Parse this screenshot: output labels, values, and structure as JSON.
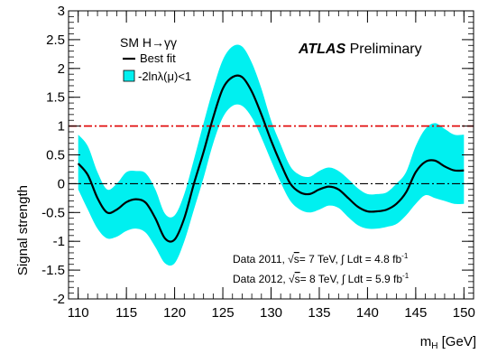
{
  "chart_data": {
    "type": "line",
    "xlabel": "m",
    "xlabel_sub": "H",
    "xlabel_unit": " [GeV]",
    "ylabel": "Signal strength",
    "xlim": [
      109,
      151
    ],
    "ylim": [
      -2,
      3
    ],
    "x_ticks": [
      110,
      115,
      120,
      125,
      130,
      135,
      140,
      145,
      150
    ],
    "y_ticks": [
      -2,
      -1.5,
      -1,
      -0.5,
      0,
      0.5,
      1,
      1.5,
      2,
      2.5,
      3
    ],
    "y_tick_labels": [
      "-2",
      "-1.5",
      "-1",
      "-0.5",
      "0",
      "0.5",
      "1",
      "1.5",
      "2",
      "2.5",
      "3"
    ],
    "experiment": "ATLAS",
    "experiment_suffix": " Preliminary",
    "legend": {
      "title": "SM H→γγ",
      "line_label": "Best fit",
      "band_label": "-2lnλ(μ)<1",
      "position": "top-left"
    },
    "data_notes": {
      "line1_prefix": "Data 2011, ",
      "line1_sqrt": "√",
      "line1_s": "s",
      "line1_mid": "= 7 TeV, ",
      "line1_int": "∫",
      "line1_ldt": " Ldt = 4.8 fb",
      "line2_prefix": "Data 2012, ",
      "line2_sqrt": "√",
      "line2_s": "s",
      "line2_mid": "= 8 TeV, ",
      "line2_int": "∫",
      "line2_ldt": " Ldt = 5.9 fb",
      "sup": "-1"
    },
    "reference_lines": [
      {
        "y": 1,
        "color": "#e00000",
        "style": "dash-dot"
      },
      {
        "y": 0,
        "color": "#000000",
        "style": "dash-dot"
      }
    ],
    "colors": {
      "band": "#00f0f0",
      "line": "#000000"
    },
    "series": [
      {
        "x": [
          110,
          111,
          112,
          113,
          114,
          115,
          116,
          117,
          118,
          119,
          120,
          121,
          122,
          123,
          124,
          125,
          126,
          127,
          128,
          129,
          130,
          131,
          132,
          133,
          134,
          135,
          136,
          137,
          138,
          139,
          140,
          141,
          142,
          143,
          144,
          145,
          146,
          147,
          148,
          149,
          150
        ],
        "y": [
          0.35,
          0.15,
          -0.25,
          -0.5,
          -0.45,
          -0.32,
          -0.27,
          -0.33,
          -0.6,
          -0.95,
          -0.97,
          -0.6,
          0.0,
          0.55,
          1.15,
          1.65,
          1.85,
          1.85,
          1.6,
          1.2,
          0.75,
          0.35,
          0.0,
          -0.15,
          -0.18,
          -0.1,
          -0.05,
          -0.1,
          -0.25,
          -0.4,
          -0.48,
          -0.48,
          -0.45,
          -0.35,
          -0.15,
          0.2,
          0.38,
          0.4,
          0.3,
          0.23,
          0.23
        ],
        "lo": [
          -0.1,
          -0.45,
          -0.78,
          -0.95,
          -0.92,
          -0.82,
          -0.78,
          -0.85,
          -1.1,
          -1.38,
          -1.38,
          -1.0,
          -0.45,
          0.1,
          0.7,
          1.15,
          1.35,
          1.35,
          1.15,
          0.8,
          0.4,
          0.02,
          -0.3,
          -0.45,
          -0.5,
          -0.45,
          -0.38,
          -0.42,
          -0.58,
          -0.72,
          -0.78,
          -0.78,
          -0.75,
          -0.7,
          -0.55,
          -0.35,
          -0.2,
          -0.25,
          -0.3,
          -0.35,
          -0.35
        ],
        "hi": [
          0.85,
          0.65,
          0.2,
          -0.1,
          0.0,
          0.2,
          0.22,
          0.18,
          -0.1,
          -0.52,
          -0.55,
          -0.18,
          0.42,
          1.05,
          1.65,
          2.15,
          2.38,
          2.38,
          2.1,
          1.65,
          1.1,
          0.68,
          0.3,
          0.15,
          0.12,
          0.22,
          0.28,
          0.22,
          0.08,
          -0.08,
          -0.18,
          -0.18,
          -0.15,
          0.0,
          0.2,
          0.65,
          0.95,
          1.05,
          0.95,
          0.85,
          0.85
        ]
      }
    ]
  }
}
